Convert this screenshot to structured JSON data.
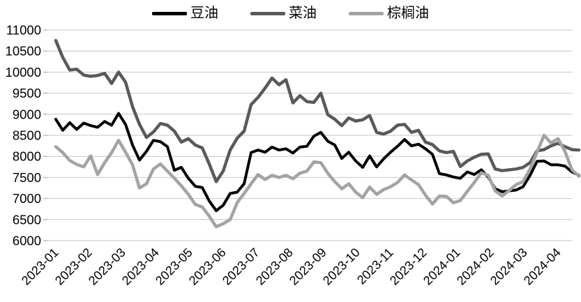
{
  "chart_data": {
    "type": "line",
    "title": "",
    "xlabel": "",
    "ylabel": "",
    "ylim": [
      6000,
      11000
    ],
    "y_tick_step": 500,
    "y_ticks": [
      "6000",
      "6500",
      "7000",
      "7500",
      "8000",
      "8500",
      "9000",
      "9500",
      "10000",
      "10500",
      "11000"
    ],
    "x_ticks": [
      "2023-01",
      "2023-02",
      "2023-03",
      "2023-04",
      "2023-05",
      "2023-06",
      "2023-07",
      "2023-08",
      "2023-09",
      "2023-10",
      "2023-11",
      "2023-12",
      "2024-01",
      "2024-02",
      "2024-03",
      "2024-04"
    ],
    "grid": "horizontal",
    "legend_position": "top-center",
    "background_color": "#ffffff",
    "gridline_color": "#c6c6c6",
    "series": [
      {
        "name": "豆油",
        "color": "#000000",
        "values": [
          8880,
          8620,
          8800,
          8640,
          8790,
          8730,
          8690,
          8830,
          8740,
          9020,
          8760,
          8270,
          7910,
          8120,
          8380,
          8350,
          8230,
          7670,
          7740,
          7480,
          7290,
          7260,
          6940,
          6710,
          6840,
          7120,
          7150,
          7350,
          8090,
          8150,
          8100,
          8220,
          8150,
          8180,
          8080,
          8220,
          8240,
          8480,
          8570,
          8360,
          8270,
          7950,
          8100,
          7890,
          7740,
          8010,
          7750,
          7940,
          8100,
          8240,
          8400,
          8250,
          8290,
          8180,
          8050,
          7590,
          7560,
          7510,
          7480,
          7630,
          7570,
          7680,
          7510,
          7230,
          7160,
          7180,
          7200,
          7280,
          7550,
          7880,
          7890,
          7800,
          7800,
          7770,
          7630,
          7550
        ]
      },
      {
        "name": "菜油",
        "color": "#595959",
        "values": [
          10750,
          10350,
          10050,
          10070,
          9930,
          9900,
          9920,
          9970,
          9730,
          10000,
          9760,
          9180,
          8760,
          8450,
          8580,
          8780,
          8740,
          8600,
          8340,
          8420,
          8270,
          8200,
          7820,
          7400,
          7650,
          8150,
          8430,
          8600,
          9230,
          9400,
          9620,
          9860,
          9700,
          9820,
          9270,
          9440,
          9300,
          9280,
          9500,
          8990,
          8880,
          8730,
          8910,
          8840,
          8870,
          8970,
          8570,
          8530,
          8600,
          8740,
          8760,
          8570,
          8620,
          8340,
          8280,
          8130,
          8090,
          8120,
          7760,
          7890,
          7980,
          8050,
          8060,
          7700,
          7660,
          7680,
          7700,
          7740,
          7850,
          8130,
          8160,
          8250,
          8310,
          8230,
          8160,
          8150
        ]
      },
      {
        "name": "棕榈油",
        "color": "#a3a3a3",
        "values": [
          8230,
          8090,
          7900,
          7810,
          7750,
          8010,
          7570,
          7850,
          8090,
          8380,
          8100,
          7800,
          7250,
          7350,
          7700,
          7820,
          7650,
          7480,
          7300,
          7100,
          6860,
          6800,
          6580,
          6330,
          6400,
          6500,
          6900,
          7120,
          7350,
          7570,
          7450,
          7550,
          7500,
          7550,
          7470,
          7600,
          7650,
          7870,
          7850,
          7600,
          7400,
          7230,
          7350,
          7150,
          7020,
          7270,
          7100,
          7210,
          7280,
          7380,
          7560,
          7440,
          7330,
          7080,
          6870,
          7060,
          7050,
          6900,
          6950,
          7170,
          7380,
          7610,
          7550,
          7180,
          7060,
          7190,
          7330,
          7400,
          7700,
          8100,
          8500,
          8320,
          8420,
          8120,
          7680,
          7530
        ]
      }
    ]
  }
}
